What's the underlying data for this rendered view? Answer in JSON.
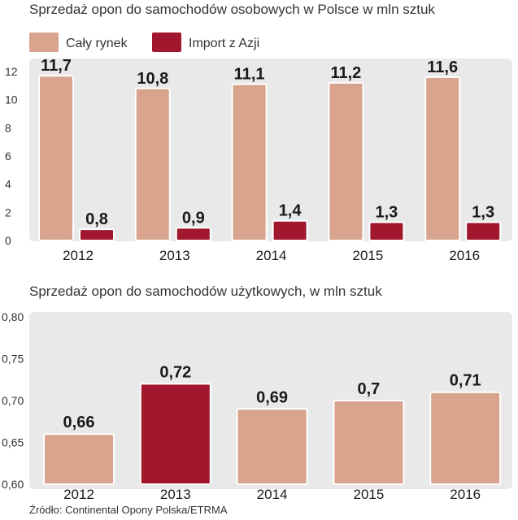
{
  "source_text": "Źródło: Continental Opony Polska/ETRMA",
  "colors": {
    "market": "#d8a48d",
    "import": "#a0172e",
    "panel": "#e9e9e9",
    "frame": "#ffffff"
  },
  "chart_data": [
    {
      "type": "bar",
      "title": "Sprzedaż opon do samochodów osobowych w Polsce w mln sztuk",
      "categories": [
        "2012",
        "2013",
        "2014",
        "2015",
        "2016"
      ],
      "series": [
        {
          "name": "Cały rynek",
          "values": [
            11.7,
            10.8,
            11.1,
            11.2,
            11.6
          ],
          "labels": [
            "11,7",
            "10,8",
            "11,1",
            "11,2",
            "11,6"
          ]
        },
        {
          "name": "Import z Azji",
          "values": [
            0.8,
            0.9,
            1.4,
            1.3,
            1.3
          ],
          "labels": [
            "0,8",
            "0,9",
            "1,4",
            "1,3",
            "1,3"
          ]
        }
      ],
      "ylim": [
        0,
        12
      ],
      "yticks": [
        0,
        2,
        4,
        6,
        8,
        10,
        12
      ],
      "ytick_labels": [
        "0",
        "2",
        "4",
        "6",
        "8",
        "10",
        "12"
      ],
      "legend": "top-left",
      "grid": false
    },
    {
      "type": "bar",
      "title": "Sprzedaż opon do samochodów użytkowych, w mln sztuk",
      "categories": [
        "2012",
        "2013",
        "2014",
        "2015",
        "2016"
      ],
      "values": [
        0.66,
        0.72,
        0.69,
        0.7,
        0.71
      ],
      "labels": [
        "0,66",
        "0,72",
        "0,69",
        "0,7",
        "0,71"
      ],
      "highlight_index": 1,
      "ylim": [
        0.6,
        0.8
      ],
      "yticks": [
        0.6,
        0.65,
        0.7,
        0.75,
        0.8
      ],
      "ytick_labels": [
        "0,60",
        "0,65",
        "0,70",
        "0,75",
        "0,80"
      ],
      "grid": false
    }
  ]
}
